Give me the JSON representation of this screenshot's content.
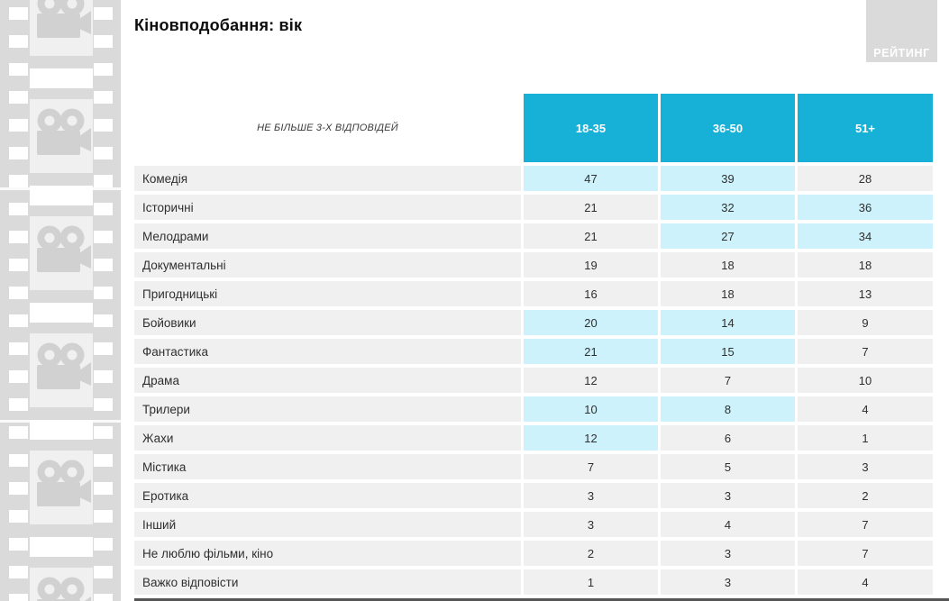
{
  "slide": {
    "title": "Кіновподобання: вік",
    "logo_text": "РЕЙТИНГ"
  },
  "table": {
    "note_header": "НЕ БІЛЬШЕ 3-Х ВІДПОВІДЕЙ",
    "columns": [
      "18-35",
      "36-50",
      "51+"
    ],
    "rows": [
      {
        "label": "Комедія",
        "values": [
          "47",
          "39",
          "28"
        ],
        "highlight": [
          true,
          true,
          false
        ]
      },
      {
        "label": "Історичні",
        "values": [
          "21",
          "32",
          "36"
        ],
        "highlight": [
          false,
          true,
          true
        ]
      },
      {
        "label": "Мелодрами",
        "values": [
          "21",
          "27",
          "34"
        ],
        "highlight": [
          false,
          true,
          true
        ]
      },
      {
        "label": "Документальні",
        "values": [
          "19",
          "18",
          "18"
        ],
        "highlight": [
          false,
          false,
          false
        ]
      },
      {
        "label": "Пригодницькі",
        "values": [
          "16",
          "18",
          "13"
        ],
        "highlight": [
          false,
          false,
          false
        ]
      },
      {
        "label": "Бойовики",
        "values": [
          "20",
          "14",
          "9"
        ],
        "highlight": [
          true,
          true,
          false
        ]
      },
      {
        "label": "Фантастика",
        "values": [
          "21",
          "15",
          "7"
        ],
        "highlight": [
          true,
          true,
          false
        ]
      },
      {
        "label": "Драма",
        "values": [
          "12",
          "7",
          "10"
        ],
        "highlight": [
          false,
          false,
          false
        ]
      },
      {
        "label": "Трилери",
        "values": [
          "10",
          "8",
          "4"
        ],
        "highlight": [
          true,
          true,
          false
        ]
      },
      {
        "label": "Жахи",
        "values": [
          "12",
          "6",
          "1"
        ],
        "highlight": [
          true,
          false,
          false
        ]
      },
      {
        "label": "Містика",
        "values": [
          "7",
          "5",
          "3"
        ],
        "highlight": [
          false,
          false,
          false
        ]
      },
      {
        "label": "Еротика",
        "values": [
          "3",
          "3",
          "2"
        ],
        "highlight": [
          false,
          false,
          false
        ]
      },
      {
        "label": "Інший",
        "values": [
          "3",
          "4",
          "7"
        ],
        "highlight": [
          false,
          false,
          false
        ]
      },
      {
        "label": "Не люблю фільми, кіно",
        "values": [
          "2",
          "3",
          "7"
        ],
        "highlight": [
          false,
          false,
          false
        ]
      },
      {
        "label": "Важко відповісти",
        "values": [
          "1",
          "3",
          "4"
        ],
        "highlight": [
          false,
          false,
          false
        ]
      }
    ]
  },
  "colors": {
    "header_cyan": "#17b1d8",
    "highlight_cyan": "#cdf2fb",
    "row_gray": "#f0f0f0",
    "strip_gray": "#dadada"
  },
  "chart_data": {
    "type": "table",
    "title": "Кіновподобання: вік",
    "note": "НЕ БІЛЬШЕ 3-Х ВІДПОВІДЕЙ",
    "categories": [
      "Комедія",
      "Історичні",
      "Мелодрами",
      "Документальні",
      "Пригодницькі",
      "Бойовики",
      "Фантастика",
      "Драма",
      "Трилери",
      "Жахи",
      "Містика",
      "Еротика",
      "Інший",
      "Не люблю фільми, кіно",
      "Важко відповісти"
    ],
    "series": [
      {
        "name": "18-35",
        "values": [
          47,
          21,
          21,
          19,
          16,
          20,
          21,
          12,
          10,
          12,
          7,
          3,
          3,
          2,
          1
        ]
      },
      {
        "name": "36-50",
        "values": [
          39,
          32,
          27,
          18,
          18,
          14,
          15,
          7,
          8,
          6,
          5,
          3,
          4,
          3,
          3
        ]
      },
      {
        "name": "51+",
        "values": [
          28,
          36,
          34,
          18,
          13,
          9,
          7,
          10,
          4,
          1,
          3,
          2,
          7,
          7,
          4
        ]
      }
    ],
    "legend_position": "top",
    "grid": false
  }
}
